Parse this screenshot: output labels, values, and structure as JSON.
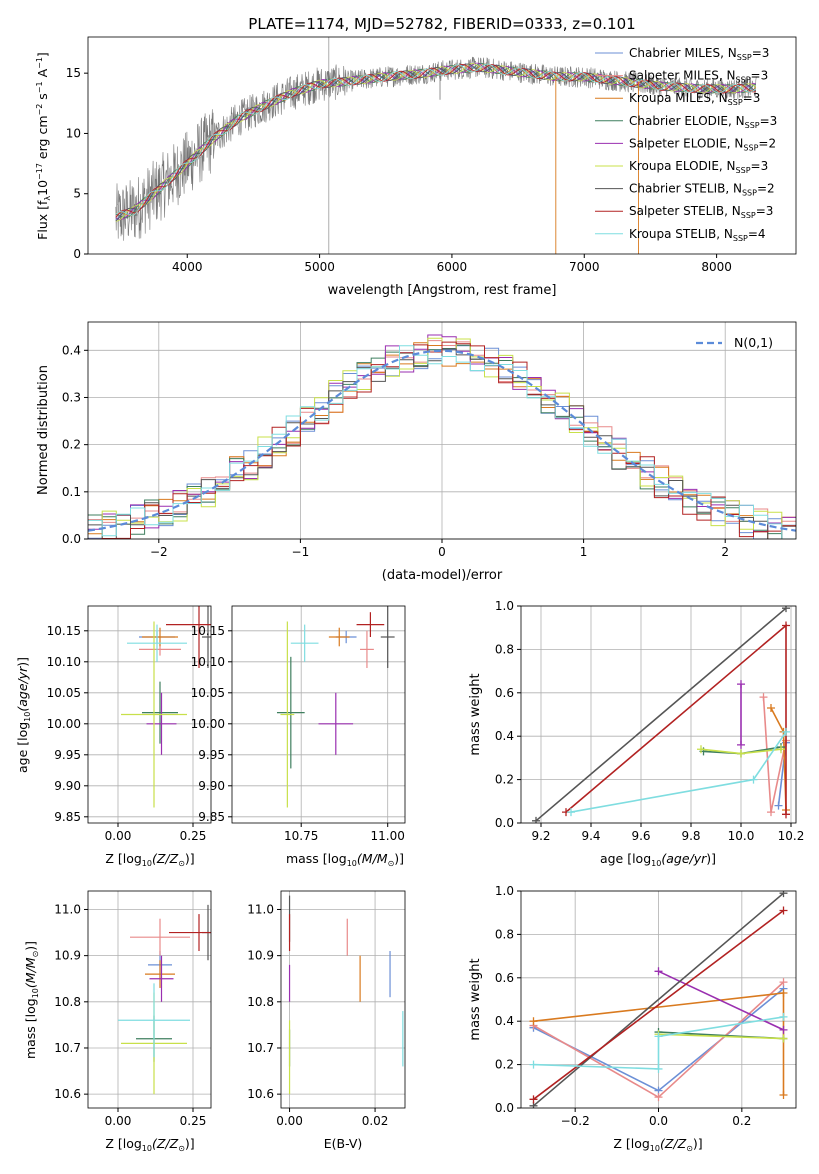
{
  "figure": {
    "title": "PLATE=1174, MJD=52782, FIBERID=0333, z=0.101"
  },
  "series": [
    {
      "name": "Chabrier MILES, N$_{SSP}$=3",
      "legend": "Chabrier MILES, N",
      "sub": "SSP",
      "suffix": "=3",
      "color": "#6b8fd6"
    },
    {
      "name": "Salpeter MILES, N$_{SSP}$=3",
      "legend": "Salpeter MILES, N",
      "sub": "SSP",
      "suffix": "=3",
      "color": "#e88a8a"
    },
    {
      "name": "Kroupa MILES, N$_{SSP}$=3",
      "legend": "Kroupa MILES, N",
      "sub": "SSP",
      "suffix": "=3",
      "color": "#d97a1f"
    },
    {
      "name": "Chabrier ELODIE, N$_{SSP}$=3",
      "legend": "Chabrier ELODIE, N",
      "sub": "SSP",
      "suffix": "=3",
      "color": "#3f7f5f"
    },
    {
      "name": "Salpeter ELODIE, N$_{SSP}$=2",
      "legend": "Salpeter ELODIE, N",
      "sub": "SSP",
      "suffix": "=2",
      "color": "#9a2fb0"
    },
    {
      "name": "Kroupa ELODIE, N$_{SSP}$=3",
      "legend": "Kroupa ELODIE, N",
      "sub": "SSP",
      "suffix": "=3",
      "color": "#c8e04a"
    },
    {
      "name": "Chabrier STELIB, N$_{SSP}$=2",
      "legend": "Chabrier STELIB, N",
      "sub": "SSP",
      "suffix": "=2",
      "color": "#555555"
    },
    {
      "name": "Salpeter STELIB, N$_{SSP}$=3",
      "legend": "Salpeter STELIB, N",
      "sub": "SSP",
      "suffix": "=3",
      "color": "#b22222"
    },
    {
      "name": "Kroupa STELIB, N$_{SSP}$=4",
      "legend": "Kroupa STELIB, N",
      "sub": "SSP",
      "suffix": "=4",
      "color": "#7fdde0"
    }
  ],
  "chart_data": [
    {
      "id": "spectrum",
      "type": "line",
      "title": "PLATE=1174, MJD=52782, FIBERID=0333, z=0.101",
      "xlabel": "wavelength [Angstrom, rest frame]",
      "ylabel_main": "Flux [f",
      "ylabel_tail": "10",
      "ylabel_rest": " erg cm",
      "xlim": [
        3250,
        8600
      ],
      "ylim": [
        0,
        18
      ],
      "xticks": [
        4000,
        5000,
        6000,
        7000,
        8000
      ],
      "yticks": [
        0,
        5,
        10,
        15
      ],
      "continuum": {
        "x": [
          3450,
          3600,
          3800,
          4000,
          4200,
          4400,
          4600,
          4800,
          5000,
          5200,
          5500,
          5800,
          6000,
          6200,
          6500,
          6800,
          7000,
          7300,
          7600,
          7900,
          8100,
          8300
        ],
        "y": [
          3.0,
          3.6,
          5.5,
          7.5,
          9.6,
          11.3,
          12.4,
          13.4,
          14.1,
          14.3,
          14.7,
          15.0,
          15.3,
          15.5,
          15.1,
          14.7,
          14.7,
          14.3,
          13.9,
          13.7,
          13.7,
          13.8
        ]
      }
    },
    {
      "id": "residuals",
      "type": "step",
      "xlabel": "(data-model)/error",
      "ylabel": "Normed distribution",
      "xlim": [
        -2.5,
        2.5
      ],
      "ylim": [
        0,
        0.46
      ],
      "xticks": [
        -2,
        -1,
        0,
        1,
        2
      ],
      "yticks": [
        0.0,
        0.1,
        0.2,
        0.3,
        0.4
      ],
      "normal_label": "N(0,1)",
      "normal_color": "#5b8bd9"
    },
    {
      "id": "age-vs-Z",
      "type": "scatter",
      "xlabel": "Z [log",
      "xlabel_rest": "(Z/Z",
      "ylabel": "age  [log",
      "xlim": [
        -0.1,
        0.31
      ],
      "ylim": [
        9.84,
        10.19
      ],
      "xticks": [
        0.0,
        0.25
      ],
      "yticks": [
        9.85,
        9.9,
        9.95,
        10.0,
        10.05,
        10.1,
        10.15
      ],
      "points": [
        {
          "s": 0,
          "x": 0.13,
          "y": 10.14,
          "dx": 0.06,
          "dy": 0.01
        },
        {
          "s": 1,
          "x": 0.14,
          "y": 10.12,
          "dx": 0.07,
          "dy": 0.01
        },
        {
          "s": 2,
          "x": 0.14,
          "y": 10.14,
          "dx": 0.06,
          "dy": 0.015
        },
        {
          "s": 3,
          "x": 0.14,
          "y": 10.018,
          "dx": 0.06,
          "dy": 0.05
        },
        {
          "s": 4,
          "x": 0.145,
          "y": 10.0,
          "dx": 0.05,
          "dy": 0.05
        },
        {
          "s": 5,
          "x": 0.12,
          "y": 10.015,
          "dx": 0.11,
          "dy": 0.15
        },
        {
          "s": 6,
          "x": 0.3,
          "y": 10.14,
          "dx": 0.02,
          "dy": 0.05
        },
        {
          "s": 7,
          "x": 0.27,
          "y": 10.16,
          "dx": 0.11,
          "dy": 0.07
        },
        {
          "s": 8,
          "x": 0.13,
          "y": 10.13,
          "dx": 0.1,
          "dy": 0.03
        }
      ]
    },
    {
      "id": "age-vs-mass",
      "type": "scatter",
      "xlabel": "mass [log",
      "xlabel_rest": "(M/M",
      "xlim": [
        10.55,
        11.05
      ],
      "ylim": [
        9.84,
        10.19
      ],
      "xticks": [
        10.75,
        11.0
      ],
      "yticks": [
        9.85,
        9.9,
        9.95,
        10.0,
        10.05,
        10.1,
        10.15
      ],
      "points": [
        {
          "s": 0,
          "x": 10.88,
          "y": 10.14,
          "dx": 0.03,
          "dy": 0.01
        },
        {
          "s": 1,
          "x": 10.94,
          "y": 10.12,
          "dx": 0.02,
          "dy": 0.03
        },
        {
          "s": 2,
          "x": 10.86,
          "y": 10.14,
          "dx": 0.03,
          "dy": 0.015
        },
        {
          "s": 3,
          "x": 10.72,
          "y": 10.018,
          "dx": 0.04,
          "dy": 0.09
        },
        {
          "s": 4,
          "x": 10.85,
          "y": 10.0,
          "dx": 0.05,
          "dy": 0.05
        },
        {
          "s": 5,
          "x": 10.71,
          "y": 10.015,
          "dx": 0.02,
          "dy": 0.15
        },
        {
          "s": 6,
          "x": 11.0,
          "y": 10.14,
          "dx": 0.02,
          "dy": 0.05
        },
        {
          "s": 7,
          "x": 10.95,
          "y": 10.16,
          "dx": 0.04,
          "dy": 0.02
        },
        {
          "s": 8,
          "x": 10.76,
          "y": 10.13,
          "dx": 0.04,
          "dy": 0.03
        }
      ]
    },
    {
      "id": "weight-vs-age",
      "type": "line",
      "xlabel": "age  [log",
      "ylabel": "mass weight",
      "xlim": [
        9.12,
        10.22
      ],
      "ylim": [
        0,
        1
      ],
      "xticks": [
        9.2,
        9.4,
        9.6,
        9.8,
        10.0,
        10.2
      ],
      "yticks": [
        0.0,
        0.2,
        0.4,
        0.6,
        0.8,
        1.0
      ],
      "lines": [
        {
          "s": 0,
          "x": [
            10.15,
            10.18
          ],
          "y": [
            0.08,
            0.37
          ]
        },
        {
          "s": 1,
          "x": [
            10.09,
            10.12,
            10.18
          ],
          "y": [
            0.58,
            0.05,
            0.38
          ]
        },
        {
          "s": 2,
          "x": [
            10.12,
            10.17,
            10.18
          ],
          "y": [
            0.53,
            0.42,
            0.06
          ]
        },
        {
          "s": 3,
          "x": [
            9.85,
            10.0,
            10.16
          ],
          "y": [
            0.33,
            0.32,
            0.35
          ]
        },
        {
          "s": 4,
          "x": [
            10.0,
            10.0
          ],
          "y": [
            0.64,
            0.36
          ]
        },
        {
          "s": 5,
          "x": [
            9.84,
            10.0,
            10.16
          ],
          "y": [
            0.34,
            0.32,
            0.34
          ]
        },
        {
          "s": 6,
          "x": [
            9.18,
            10.18
          ],
          "y": [
            0.01,
            0.99
          ]
        },
        {
          "s": 7,
          "x": [
            9.3,
            10.18,
            10.18
          ],
          "y": [
            0.05,
            0.91,
            0.04
          ]
        },
        {
          "s": 8,
          "x": [
            9.32,
            10.05,
            10.18
          ],
          "y": [
            0.05,
            0.2,
            0.42
          ]
        }
      ]
    },
    {
      "id": "mass-vs-Z",
      "type": "scatter",
      "xlabel": "Z [log",
      "xlabel_rest": "(Z/Z",
      "ylabel": "mass [log",
      "xlim": [
        -0.1,
        0.31
      ],
      "ylim": [
        10.57,
        11.04
      ],
      "xticks": [
        0.0,
        0.25
      ],
      "yticks": [
        10.6,
        10.7,
        10.8,
        10.9,
        11.0
      ],
      "points": [
        {
          "s": 0,
          "x": 0.14,
          "y": 10.88,
          "dx": 0.04,
          "dy": 0.03
        },
        {
          "s": 1,
          "x": 0.14,
          "y": 10.94,
          "dx": 0.1,
          "dy": 0.04
        },
        {
          "s": 2,
          "x": 0.14,
          "y": 10.86,
          "dx": 0.05,
          "dy": 0.03
        },
        {
          "s": 3,
          "x": 0.12,
          "y": 10.72,
          "dx": 0.06,
          "dy": 0.05
        },
        {
          "s": 4,
          "x": 0.145,
          "y": 10.85,
          "dx": 0.04,
          "dy": 0.05
        },
        {
          "s": 5,
          "x": 0.12,
          "y": 10.71,
          "dx": 0.11,
          "dy": 0.11
        },
        {
          "s": 6,
          "x": 0.3,
          "y": 10.95,
          "dx": 0.02,
          "dy": 0.06
        },
        {
          "s": 7,
          "x": 0.27,
          "y": 10.95,
          "dx": 0.1,
          "dy": 0.04
        },
        {
          "s": 8,
          "x": 0.12,
          "y": 10.76,
          "dx": 0.12,
          "dy": 0.08
        }
      ]
    },
    {
      "id": "mass-vs-ebv",
      "type": "scatter",
      "xlabel": "E(B-V)",
      "xlim": [
        -0.002,
        0.027
      ],
      "ylim": [
        10.57,
        11.04
      ],
      "xticks": [
        0.0,
        0.02
      ],
      "yticks": [
        10.6,
        10.7,
        10.8,
        10.9,
        11.0
      ],
      "points": [
        {
          "s": 0,
          "x": 0.0235,
          "y": 10.86,
          "dx": 0,
          "dy": 0.05
        },
        {
          "s": 1,
          "x": 0.0135,
          "y": 10.94,
          "dx": 0,
          "dy": 0.04
        },
        {
          "s": 2,
          "x": 0.0165,
          "y": 10.85,
          "dx": 0,
          "dy": 0.05
        },
        {
          "s": 3,
          "x": 0.0,
          "y": 10.7,
          "dx": 0,
          "dy": 0.04
        },
        {
          "s": 4,
          "x": 0.0,
          "y": 10.84,
          "dx": 0,
          "dy": 0.04
        },
        {
          "s": 5,
          "x": 0.0,
          "y": 10.68,
          "dx": 0,
          "dy": 0.08
        },
        {
          "s": 6,
          "x": 0.0,
          "y": 10.98,
          "dx": 0,
          "dy": 0.05
        },
        {
          "s": 7,
          "x": 0.0,
          "y": 10.95,
          "dx": 0,
          "dy": 0.04
        },
        {
          "s": 8,
          "x": 0.0265,
          "y": 10.72,
          "dx": 0,
          "dy": 0.06
        }
      ]
    },
    {
      "id": "weight-vs-Z",
      "type": "line",
      "xlabel": "Z [log",
      "xlabel_rest": "(Z/Z",
      "ylabel": "mass weight",
      "xlim": [
        -0.33,
        0.33
      ],
      "ylim": [
        0,
        1
      ],
      "xticks": [
        -0.2,
        0.0,
        0.2
      ],
      "yticks": [
        0.0,
        0.2,
        0.4,
        0.6,
        0.8,
        1.0
      ],
      "lines": [
        {
          "s": 0,
          "x": [
            -0.3,
            0.0,
            0.3
          ],
          "y": [
            0.37,
            0.08,
            0.55
          ]
        },
        {
          "s": 1,
          "x": [
            -0.3,
            0.0,
            0.3
          ],
          "y": [
            0.38,
            0.05,
            0.58
          ]
        },
        {
          "s": 2,
          "x": [
            -0.3,
            0.3,
            0.3
          ],
          "y": [
            0.4,
            0.53,
            0.06
          ]
        },
        {
          "s": 3,
          "x": [
            0.0,
            0.3
          ],
          "y": [
            0.35,
            0.32
          ]
        },
        {
          "s": 4,
          "x": [
            0.0,
            0.3
          ],
          "y": [
            0.63,
            0.36
          ]
        },
        {
          "s": 5,
          "x": [
            0.0,
            0.3
          ],
          "y": [
            0.34,
            0.32
          ]
        },
        {
          "s": 6,
          "x": [
            -0.3,
            0.3
          ],
          "y": [
            0.01,
            0.99
          ]
        },
        {
          "s": 7,
          "x": [
            -0.3,
            0.3
          ],
          "y": [
            0.04,
            0.91
          ]
        },
        {
          "s": 8,
          "x": [
            -0.3,
            0.0,
            0.0,
            0.3
          ],
          "y": [
            0.2,
            0.18,
            0.33,
            0.42
          ]
        }
      ]
    }
  ]
}
